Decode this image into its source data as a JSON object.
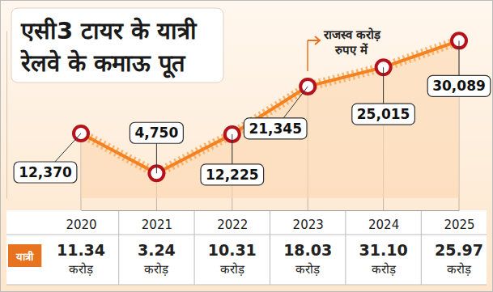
{
  "chart_data": {
    "type": "line",
    "title": "एसी3 टायर के यात्री रेलवे के कमाऊ पूत",
    "categories": [
      "2020",
      "2021",
      "2022",
      "2023",
      "2024",
      "2025"
    ],
    "series": [
      {
        "name": "राजस्व करोड़ रुपए में",
        "color": "#f58220",
        "marker": "circle",
        "values": [
          12370,
          4750,
          12225,
          21345,
          25015,
          30089
        ],
        "value_labels": [
          "12,370",
          "4,750",
          "12,225",
          "21,345",
          "25,015",
          "30,089"
        ]
      },
      {
        "name": "यात्री",
        "type": "table",
        "color": "#e8731f",
        "values": [
          11.34,
          3.24,
          10.31,
          18.03,
          31.1,
          25.97
        ],
        "value_labels": [
          "11.34 करोड़",
          "3.24 करोड़",
          "10.31 करोड़",
          "18.03 करोड़",
          "31.10 करोड़",
          "25.97 करोड़"
        ]
      }
    ],
    "ylim": [
      0,
      32000
    ],
    "yticks": [],
    "tick_labels": "x",
    "data_labels": true
  }
}
